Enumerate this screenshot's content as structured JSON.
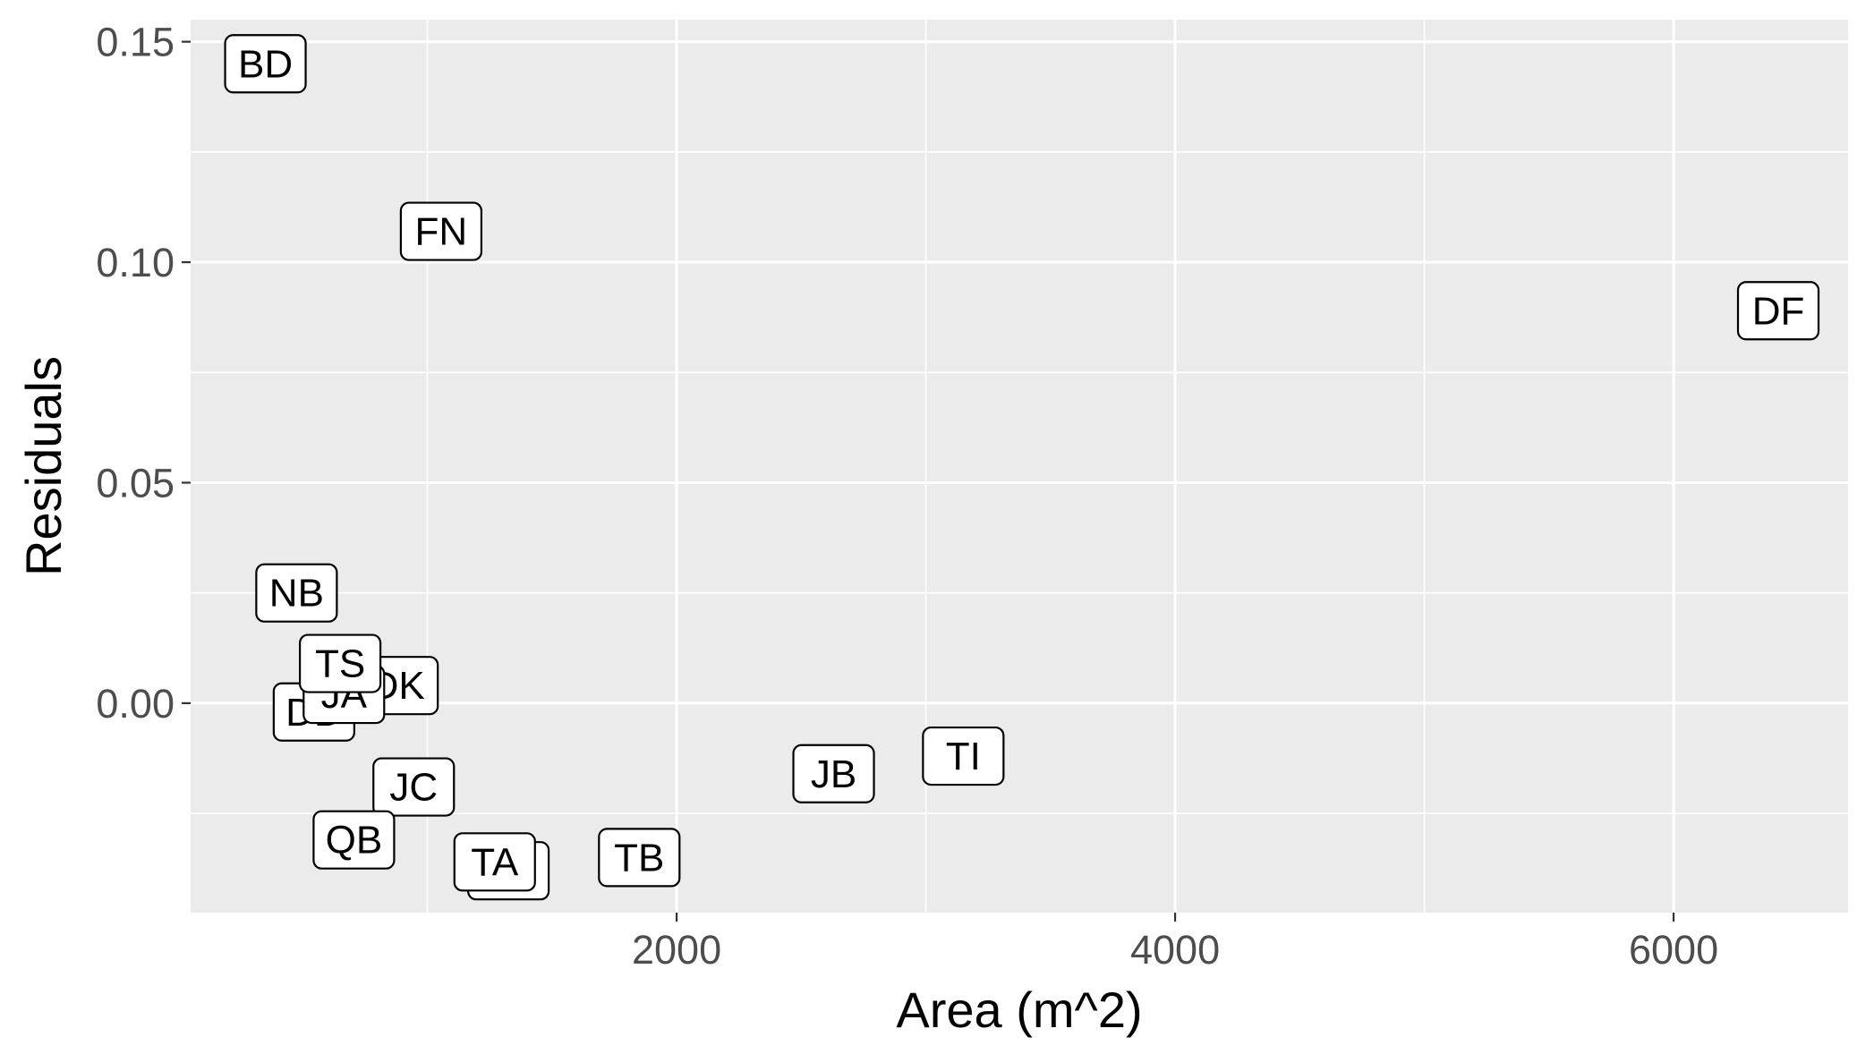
{
  "chart_data": {
    "type": "scatter",
    "title": "",
    "xlabel": "Area (m^2)",
    "ylabel": "Residuals",
    "xlim": [
      50,
      6700
    ],
    "ylim": [
      -0.0475,
      0.155
    ],
    "x_ticks": [
      2000,
      4000,
      6000
    ],
    "x_tick_labels": [
      "2000",
      "4000",
      "6000"
    ],
    "y_ticks": [
      0.0,
      0.05,
      0.1,
      0.15
    ],
    "y_tick_labels": [
      "0.00",
      "0.05",
      "0.10",
      "0.15"
    ],
    "grid": true,
    "legend": "none",
    "colors": {
      "panel": "#ebebeb",
      "grid": "#ffffff",
      "axis_text": "#4d4d4d",
      "tick": "#333333",
      "label_fill": "#ffffff",
      "label_border": "#000000"
    },
    "points": [
      {
        "label": "BD",
        "x": 350,
        "y": 0.145
      },
      {
        "label": "FN",
        "x": 1055,
        "y": 0.107
      },
      {
        "label": "DF",
        "x": 6420,
        "y": 0.089
      },
      {
        "label": "NB",
        "x": 475,
        "y": 0.025
      },
      {
        "label": "DK",
        "x": 880,
        "y": 0.004
      },
      {
        "label": "DD",
        "x": 545,
        "y": -0.002
      },
      {
        "label": "JA",
        "x": 665,
        "y": 0.002
      },
      {
        "label": "TS",
        "x": 650,
        "y": 0.009
      },
      {
        "label": "JC",
        "x": 945,
        "y": -0.019
      },
      {
        "label": "JB",
        "x": 2630,
        "y": -0.016
      },
      {
        "label": "TI",
        "x": 3150,
        "y": -0.012
      },
      {
        "label": "QB",
        "x": 705,
        "y": -0.031
      },
      {
        "label": "TD",
        "x": 1325,
        "y": -0.038
      },
      {
        "label": "TA",
        "x": 1270,
        "y": -0.036
      },
      {
        "label": "TB",
        "x": 1850,
        "y": -0.035
      }
    ]
  }
}
